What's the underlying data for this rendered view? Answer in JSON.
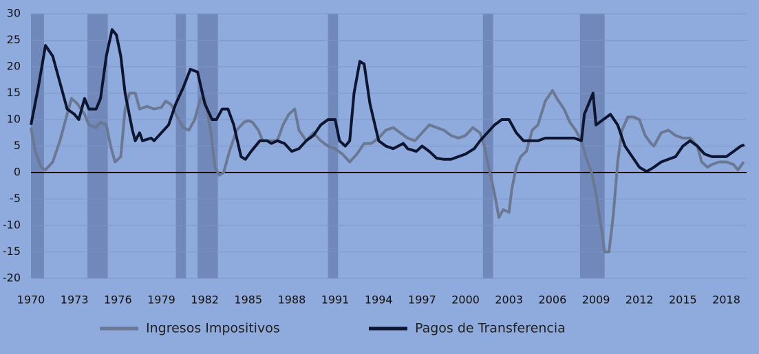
{
  "chart_data": {
    "type": "line",
    "xlim": [
      1970,
      2019.4
    ],
    "ylim": [
      -20,
      30
    ],
    "xticks": [
      1970,
      1973,
      1976,
      1979,
      1982,
      1985,
      1988,
      1991,
      1994,
      1997,
      2000,
      2003,
      2006,
      2009,
      2012,
      2015,
      2018
    ],
    "yticks": [
      -20,
      -15,
      -10,
      -5,
      0,
      5,
      10,
      15,
      20,
      25,
      30
    ],
    "grid": true,
    "shaded_periods": [
      [
        1970,
        1970.9
      ],
      [
        1973.9,
        1975.3
      ],
      [
        1980,
        1980.7
      ],
      [
        1981.5,
        1982.9
      ],
      [
        1990.5,
        1991.2
      ],
      [
        2001.2,
        2001.9
      ],
      [
        2007.9,
        2009.6
      ]
    ],
    "shade_color": "#7189ba",
    "legend": "bottom",
    "series": [
      {
        "name": "Ingresos Impositivos",
        "color": "#6b7894",
        "x": [
          1970,
          1970.3,
          1970.7,
          1971,
          1971.5,
          1972,
          1972.5,
          1972.8,
          1973.2,
          1973.7,
          1974,
          1974.5,
          1974.8,
          1975.2,
          1975.5,
          1975.8,
          1976.2,
          1976.5,
          1976.8,
          1977.2,
          1977.5,
          1978,
          1978.5,
          1979,
          1979.3,
          1979.7,
          1980,
          1980.5,
          1980.9,
          1981.3,
          1981.7,
          1982,
          1982.4,
          1982.7,
          1983,
          1983.3,
          1983.7,
          1984.2,
          1984.7,
          1985,
          1985.3,
          1985.7,
          1986,
          1986.5,
          1987,
          1987.4,
          1987.8,
          1988.2,
          1988.5,
          1989,
          1989.5,
          1990,
          1990.5,
          1991,
          1991.5,
          1992,
          1992.5,
          1993,
          1993.5,
          1994,
          1994.5,
          1995,
          1995.5,
          1996,
          1996.5,
          1997,
          1997.5,
          1998,
          1998.5,
          1999,
          1999.5,
          2000,
          2000.5,
          2001,
          2001.3,
          2001.6,
          2002,
          2002.3,
          2002.6,
          2003,
          2003.2,
          2003.5,
          2003.8,
          2004.2,
          2004.6,
          2005,
          2005.5,
          2006,
          2006.3,
          2006.8,
          2007.2,
          2007.6,
          2008,
          2008.3,
          2008.7,
          2009,
          2009.4,
          2009.6,
          2009.9,
          2010.2,
          2010.5,
          2010.8,
          2011.2,
          2011.6,
          2012,
          2012.4,
          2012.8,
          2013,
          2013.5,
          2014,
          2014.5,
          2015,
          2015.5,
          2016,
          2016.3,
          2016.7,
          2017,
          2017.5,
          2018,
          2018.5,
          2018.8,
          2019.2
        ],
        "values": [
          8.5,
          4,
          1,
          0.5,
          2,
          6,
          11,
          14,
          13,
          11,
          9,
          8.5,
          9.5,
          9,
          5,
          2,
          3,
          12,
          15,
          15,
          12,
          12.5,
          12,
          12.3,
          13.5,
          12.8,
          11,
          8.5,
          8,
          10,
          14,
          14,
          8,
          1,
          -0.5,
          0,
          4,
          8,
          9.5,
          9.8,
          9.5,
          8,
          6,
          6,
          6,
          9,
          11,
          12,
          8,
          6,
          7.5,
          6,
          5,
          4.5,
          3.5,
          2,
          3.5,
          5.5,
          5.5,
          6.5,
          8,
          8.5,
          7.5,
          6.5,
          6,
          7.5,
          9,
          8.5,
          8,
          7,
          6.5,
          7,
          8.5,
          7.5,
          5,
          1,
          -4,
          -8.5,
          -7,
          -7.5,
          -3,
          1,
          3,
          4,
          8,
          9,
          13.5,
          15.5,
          14,
          12,
          9.5,
          8,
          6,
          3,
          0,
          -4,
          -11,
          -15,
          -15,
          -8,
          2,
          8,
          10.5,
          10.5,
          10,
          7,
          5.5,
          5,
          7.5,
          8,
          7,
          6.5,
          6.5,
          5,
          2,
          1,
          1.5,
          2,
          2,
          1.5,
          0.5,
          2
        ]
      },
      {
        "name": "Pagos de Transferencia",
        "color": "#0d1530",
        "x": [
          1970,
          1970.5,
          1971,
          1971.5,
          1972,
          1972.5,
          1973,
          1973.3,
          1973.7,
          1974,
          1974.5,
          1974.8,
          1975.2,
          1975.6,
          1975.9,
          1976.2,
          1976.5,
          1977,
          1977.2,
          1977.5,
          1977.7,
          1978.3,
          1978.5,
          1979,
          1979.5,
          1980,
          1980.5,
          1981,
          1981.5,
          1982,
          1982.5,
          1982.8,
          1983.2,
          1983.6,
          1984,
          1984.5,
          1984.8,
          1985.2,
          1985.8,
          1986.3,
          1986.6,
          1987,
          1987.5,
          1988,
          1988.5,
          1989,
          1989.5,
          1990,
          1990.5,
          1991,
          1991.3,
          1991.7,
          1992,
          1992.3,
          1992.7,
          1993,
          1993.4,
          1994,
          1994.5,
          1995,
          1995.7,
          1996,
          1996.6,
          1997,
          1997.5,
          1998,
          1998.5,
          1999,
          1999.5,
          2000,
          2000.6,
          2001,
          2001.5,
          2002,
          2002.5,
          2003,
          2003.5,
          2004,
          2004.5,
          2005,
          2005.5,
          2006,
          2006.5,
          2007,
          2007.5,
          2008,
          2008.2,
          2008.5,
          2008.8,
          2009,
          2009.5,
          2010,
          2010.5,
          2011,
          2011.5,
          2012,
          2012.5,
          2013,
          2013.5,
          2014,
          2014.5,
          2015,
          2015.5,
          2016,
          2016.5,
          2017,
          2017.5,
          2018,
          2018.5,
          2019,
          2019.25
        ],
        "values": [
          9,
          16,
          24,
          22,
          17,
          12,
          11,
          10,
          14,
          12,
          12,
          14,
          22,
          27,
          26,
          22,
          15,
          8,
          6,
          7.5,
          6,
          6.5,
          6,
          7.5,
          9,
          13,
          16,
          19.5,
          19,
          13,
          10,
          10,
          12,
          12,
          9,
          3,
          2.5,
          4,
          6,
          6,
          5.5,
          6,
          5.5,
          4,
          4.5,
          6,
          7,
          9,
          10,
          10,
          6,
          5,
          6,
          15,
          21,
          20.5,
          13,
          6,
          5,
          4.5,
          5.5,
          4.5,
          4,
          5,
          4,
          2.7,
          2.5,
          2.5,
          3,
          3.5,
          4.5,
          6,
          7.5,
          9,
          10,
          10,
          7.5,
          6,
          6,
          6,
          6.5,
          6.5,
          6.5,
          6.5,
          6.5,
          6,
          11,
          13,
          15,
          9,
          10,
          11,
          9,
          5,
          3,
          1,
          0.2,
          1,
          2,
          2.5,
          3,
          5,
          6,
          5,
          3.5,
          3,
          3,
          3,
          4,
          5,
          5.2
        ]
      }
    ]
  }
}
